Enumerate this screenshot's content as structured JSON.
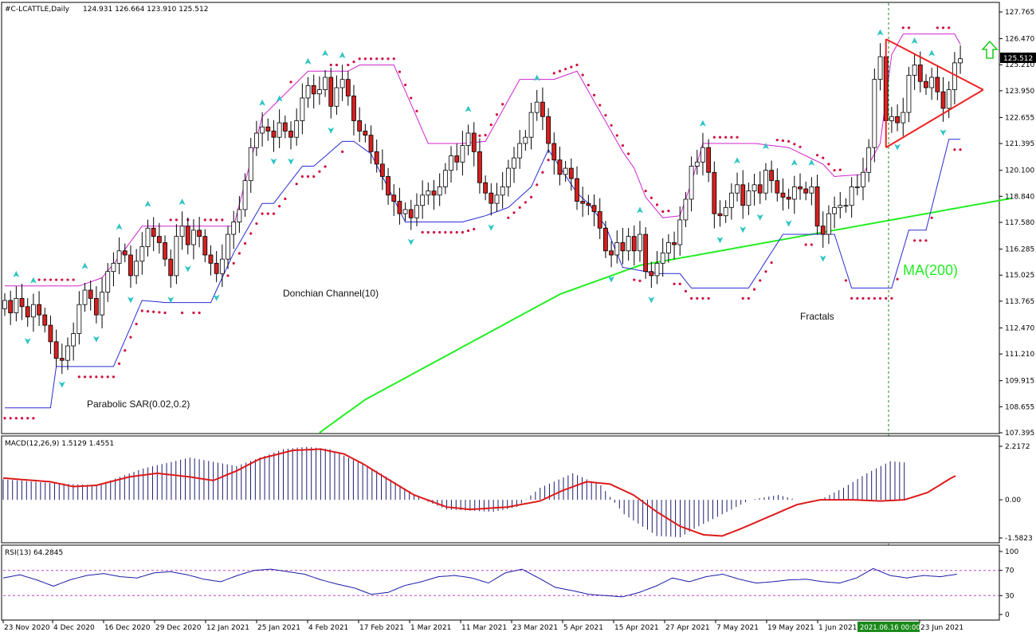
{
  "header": {
    "symbol_info": "#C-LCATTLE,Daily",
    "ohlc": "124.931 126.664 123.910 125.512"
  },
  "annotations": {
    "donchian": "Donchian Channel(10)",
    "psar": "Parabolic SAR(0.02,0.2)",
    "fractals": "Fractals",
    "ma": "MA(200)"
  },
  "colors": {
    "bull": "#ffffff",
    "bear": "#d42020",
    "donchian_upper": "#d024d0",
    "donchian_lower": "#2a2ad8",
    "psar": "#d01040",
    "ma": "#22ee22",
    "triangle": "#ee2222",
    "macd_hist": "#1c1c6e",
    "macd_signal": "#dd1a1a",
    "rsi": "#1a1aa8",
    "rsi_level": "#c040c0",
    "fractal": "#2ec4c4",
    "arrow_up": "#22cc22",
    "price_marker_bg": "#000000",
    "time_marker_bg": "#1a8a1a"
  },
  "price_marker": "125.512",
  "time_marker": "2021.06.16 00:00",
  "chart_data": [
    {
      "type": "candlestick",
      "title": "#C-LCATTLE,Daily",
      "ylim": [
        107.395,
        127.765
      ],
      "y_ticks": [
        "127.765",
        "126.470",
        "125.210",
        "123.950",
        "122.655",
        "121.395",
        "120.100",
        "118.840",
        "117.580",
        "116.285",
        "115.025",
        "113.765",
        "112.470",
        "111.210",
        "109.915",
        "108.655",
        "107.395"
      ],
      "x_ticks": [
        "23 Nov 2020",
        "4 Dec 2020",
        "16 Dec 2020",
        "29 Dec 2020",
        "12 Jan 2021",
        "25 Jan 2021",
        "4 Feb 2021",
        "17 Feb 2021",
        "1 Mar 2021",
        "11 Mar 2021",
        "23 Mar 2021",
        "5 Apr 2021",
        "15 Apr 2021",
        "27 Apr 2021",
        "7 May 2021",
        "19 May 2021",
        "1 Jun 2021",
        "23 Jun 2021"
      ],
      "series_close": [
        113.8,
        113.2,
        113.9,
        113.5,
        113.0,
        113.6,
        113.1,
        112.6,
        111.8,
        111.0,
        110.9,
        111.6,
        112.2,
        113.6,
        114.3,
        113.9,
        113.1,
        114.2,
        115.2,
        115.6,
        116.2,
        116.0,
        115.0,
        115.7,
        116.4,
        117.3,
        116.9,
        116.6,
        115.8,
        115.0,
        116.9,
        117.4,
        116.5,
        117.2,
        116.9,
        116.0,
        115.6,
        115.1,
        115.8,
        117.0,
        117.6,
        118.2,
        119.6,
        121.2,
        121.9,
        122.2,
        122.0,
        121.7,
        122.4,
        122.0,
        121.7,
        122.5,
        123.6,
        124.2,
        123.8,
        124.0,
        124.6,
        123.2,
        124.1,
        124.5,
        123.7,
        122.5,
        122.0,
        121.8,
        121.0,
        120.4,
        119.8,
        118.9,
        118.6,
        118.0,
        118.2,
        117.8,
        118.4,
        118.9,
        119.1,
        118.9,
        119.3,
        120.1,
        120.8,
        120.5,
        121.3,
        121.9,
        121.0,
        119.5,
        119.0,
        118.5,
        118.9,
        119.3,
        120.2,
        120.7,
        121.4,
        121.7,
        122.9,
        123.4,
        122.7,
        121.4,
        120.6,
        119.9,
        120.2,
        119.7,
        118.6,
        118.5,
        118.4,
        118.1,
        117.3,
        116.2,
        116.0,
        116.6,
        116.2,
        116.9,
        116.2,
        117.0,
        115.2,
        115.0,
        115.6,
        116.1,
        116.6,
        116.5,
        117.7,
        118.7,
        120.3,
        120.5,
        121.2,
        120.0,
        118.0,
        117.9,
        118.3,
        119.0,
        119.4,
        118.4,
        119.1,
        119.4,
        119.0,
        120.1,
        119.6,
        119.0,
        118.8,
        118.7,
        119.3,
        119.2,
        119.0,
        119.3,
        117.4,
        117.0,
        118.0,
        118.3,
        118.4,
        118.4,
        119.3,
        119.3,
        120.0,
        121.2,
        124.5,
        125.6,
        122.5,
        122.7,
        122.4,
        122.9,
        124.7,
        125.2,
        124.4,
        124.1,
        124.6,
        123.9,
        123.1,
        124.0,
        125.3,
        125.5
      ],
      "series_ma200": [
        null,
        null,
        null,
        null,
        null,
        null,
        null,
        null,
        null,
        null,
        null,
        null,
        null,
        null,
        null,
        null,
        null,
        null,
        null,
        null,
        null,
        null,
        null,
        null,
        null,
        null,
        null,
        null,
        null,
        null,
        null,
        null,
        null,
        null,
        null,
        null,
        null,
        null,
        null,
        null,
        null,
        null,
        null,
        null,
        null,
        null,
        null,
        null,
        null,
        null,
        null,
        null,
        null,
        null,
        null,
        107.4,
        107.6,
        107.8,
        108.0,
        108.2,
        108.4,
        108.6,
        108.8,
        109.0,
        109.15,
        109.3,
        109.45,
        109.6,
        109.75,
        109.9,
        110.05,
        110.2,
        110.35,
        110.5,
        110.65,
        110.8,
        110.95,
        111.1,
        111.25,
        111.4,
        111.55,
        111.7,
        111.85,
        112.0,
        112.15,
        112.3,
        112.45,
        112.6,
        112.75,
        112.9,
        113.05,
        113.2,
        113.35,
        113.5,
        113.65,
        113.8,
        113.95,
        114.1,
        114.2,
        114.3,
        114.4,
        114.5,
        114.6,
        114.7,
        114.8,
        114.9,
        115.0,
        115.1,
        115.2,
        115.3,
        115.4,
        115.5,
        115.55,
        115.6,
        115.65,
        115.7,
        115.75,
        115.8,
        115.85,
        115.9,
        115.95,
        116.0,
        116.05,
        116.1,
        116.15,
        116.2,
        116.25,
        116.3,
        116.35,
        116.4,
        116.45,
        116.5,
        116.55,
        116.6,
        116.65,
        116.7,
        116.75,
        116.8,
        116.85,
        116.9,
        116.95,
        117.0,
        117.05,
        117.1,
        117.15,
        117.2,
        117.25,
        117.3,
        117.35,
        117.4,
        117.45,
        117.5,
        117.55,
        117.6,
        117.65,
        117.7,
        117.75,
        117.8,
        117.85,
        117.9,
        117.95,
        118.0,
        118.05,
        118.1,
        118.15,
        118.2,
        118.25,
        118.3,
        118.35,
        118.4,
        118.45,
        118.5,
        118.55,
        118.6,
        118.65,
        118.7,
        118.75
      ],
      "donchian_upper_key": [
        [
          0,
          114.5
        ],
        [
          13,
          114.5
        ],
        [
          17,
          114.9
        ],
        [
          20,
          115.9
        ],
        [
          24,
          117.4
        ],
        [
          40,
          117.4
        ],
        [
          45,
          122.7
        ],
        [
          53,
          124.9
        ],
        [
          60,
          124.9
        ],
        [
          62,
          125.2
        ],
        [
          68,
          125.2
        ],
        [
          74,
          121.4
        ],
        [
          80,
          121.4
        ],
        [
          84,
          121.5
        ],
        [
          90,
          124.5
        ],
        [
          96,
          124.5
        ],
        [
          100,
          124.9
        ],
        [
          108,
          121.0
        ],
        [
          110,
          120.2
        ],
        [
          112,
          118.8
        ],
        [
          115,
          117.8
        ],
        [
          118,
          117.9
        ],
        [
          120,
          119.5
        ],
        [
          122,
          121.4
        ],
        [
          131,
          121.4
        ],
        [
          137,
          121.2
        ],
        [
          143,
          120.4
        ],
        [
          145,
          119.8
        ],
        [
          150,
          119.9
        ],
        [
          153,
          121.4
        ],
        [
          155,
          125.7
        ],
        [
          157,
          126.7
        ],
        [
          164,
          126.7
        ],
        [
          166,
          126.7
        ],
        [
          167,
          126.2
        ]
      ],
      "donchian_lower_key": [
        [
          0,
          108.6
        ],
        [
          8,
          108.6
        ],
        [
          9,
          110.6
        ],
        [
          19,
          110.6
        ],
        [
          24,
          113.8
        ],
        [
          28,
          113.7
        ],
        [
          36,
          113.7
        ],
        [
          40,
          116.1
        ],
        [
          45,
          118.5
        ],
        [
          47,
          118.5
        ],
        [
          52,
          120.3
        ],
        [
          54,
          120.3
        ],
        [
          59,
          121.5
        ],
        [
          61,
          121.5
        ],
        [
          64,
          120.9
        ],
        [
          70,
          117.6
        ],
        [
          80,
          117.6
        ],
        [
          84,
          117.9
        ],
        [
          88,
          118.3
        ],
        [
          92,
          119.3
        ],
        [
          95,
          121.1
        ],
        [
          100,
          119.0
        ],
        [
          102,
          118.5
        ],
        [
          105,
          117.4
        ],
        [
          108,
          115.4
        ],
        [
          114,
          115.1
        ],
        [
          118,
          115.1
        ],
        [
          120,
          114.4
        ],
        [
          130,
          114.4
        ],
        [
          133,
          115.7
        ],
        [
          136,
          117.0
        ],
        [
          145,
          117.0
        ],
        [
          148,
          114.4
        ],
        [
          155,
          114.4
        ],
        [
          158,
          117.2
        ],
        [
          161,
          117.2
        ],
        [
          165,
          121.6
        ],
        [
          167,
          121.6
        ]
      ],
      "triangle_upper": [
        [
          154,
          126.45
        ],
        [
          167,
          124.75
        ]
      ],
      "triangle_lower": [
        [
          154,
          121.2
        ],
        [
          167,
          123.2
        ]
      ],
      "triangle_apex": [
        171,
        124.0
      ]
    },
    {
      "type": "bar",
      "title": "MACD(12,26,9) 1.5129 1.4551",
      "ylim": [
        -1.5823,
        2.2172
      ],
      "y_ticks": [
        "2.2172",
        "0.00",
        "-1.5823"
      ],
      "macd_key": [
        [
          0,
          0.85
        ],
        [
          10,
          0.7
        ],
        [
          20,
          0.6
        ],
        [
          30,
          1.3
        ],
        [
          40,
          1.75
        ],
        [
          50,
          1.4
        ],
        [
          60,
          2.1
        ],
        [
          65,
          2.2
        ],
        [
          70,
          2.1
        ],
        [
          80,
          1.2
        ],
        [
          90,
          0.0
        ],
        [
          95,
          -0.4
        ],
        [
          105,
          -0.5
        ],
        [
          110,
          -0.3
        ],
        [
          115,
          0.5
        ],
        [
          122,
          1.1
        ],
        [
          128,
          0.6
        ],
        [
          133,
          -0.6
        ],
        [
          140,
          -1.5
        ],
        [
          145,
          -1.55
        ],
        [
          148,
          -1.2
        ],
        [
          155,
          -0.5
        ],
        [
          160,
          0.0
        ],
        [
          166,
          0.2
        ],
        [
          170,
          0.0
        ],
        [
          175,
          0.0
        ],
        [
          180,
          0.5
        ],
        [
          185,
          1.1
        ],
        [
          190,
          1.6
        ],
        [
          193,
          1.55
        ]
      ],
      "signal_key": [
        [
          0,
          0.9
        ],
        [
          10,
          0.75
        ],
        [
          15,
          0.55
        ],
        [
          20,
          0.6
        ],
        [
          27,
          0.95
        ],
        [
          33,
          1.1
        ],
        [
          40,
          0.95
        ],
        [
          45,
          0.8
        ],
        [
          50,
          1.2
        ],
        [
          55,
          1.7
        ],
        [
          62,
          2.05
        ],
        [
          68,
          2.1
        ],
        [
          73,
          1.9
        ],
        [
          77,
          1.5
        ],
        [
          82,
          0.9
        ],
        [
          88,
          0.2
        ],
        [
          95,
          -0.3
        ],
        [
          100,
          -0.4
        ],
        [
          108,
          -0.3
        ],
        [
          115,
          -0.05
        ],
        [
          120,
          0.4
        ],
        [
          125,
          0.75
        ],
        [
          130,
          0.65
        ],
        [
          135,
          0.2
        ],
        [
          140,
          -0.5
        ],
        [
          145,
          -1.1
        ],
        [
          150,
          -1.45
        ],
        [
          154,
          -1.5
        ],
        [
          158,
          -1.2
        ],
        [
          164,
          -0.7
        ],
        [
          170,
          -0.2
        ],
        [
          175,
          0.0
        ],
        [
          182,
          0.0
        ],
        [
          188,
          -0.05
        ],
        [
          193,
          0.0
        ],
        [
          198,
          0.3
        ],
        [
          203,
          0.9
        ],
        [
          208,
          1.35
        ],
        [
          213,
          1.48
        ]
      ]
    },
    {
      "type": "line",
      "title": "RSI(13) 64.2845",
      "ylim": [
        0,
        100
      ],
      "y_ticks": [
        "100",
        "70",
        "30",
        "0"
      ],
      "levels": [
        70,
        30
      ],
      "rsi_key": [
        [
          0,
          58
        ],
        [
          5,
          63
        ],
        [
          10,
          55
        ],
        [
          15,
          45
        ],
        [
          20,
          55
        ],
        [
          25,
          62
        ],
        [
          30,
          65
        ],
        [
          35,
          60
        ],
        [
          40,
          58
        ],
        [
          45,
          66
        ],
        [
          50,
          68
        ],
        [
          55,
          63
        ],
        [
          60,
          56
        ],
        [
          65,
          52
        ],
        [
          70,
          62
        ],
        [
          75,
          70
        ],
        [
          80,
          72
        ],
        [
          85,
          68
        ],
        [
          90,
          64
        ],
        [
          95,
          55
        ],
        [
          100,
          48
        ],
        [
          105,
          42
        ],
        [
          110,
          32
        ],
        [
          115,
          35
        ],
        [
          120,
          46
        ],
        [
          125,
          52
        ],
        [
          130,
          60
        ],
        [
          135,
          62
        ],
        [
          140,
          58
        ],
        [
          145,
          50
        ],
        [
          150,
          66
        ],
        [
          155,
          72
        ],
        [
          160,
          58
        ],
        [
          165,
          43
        ],
        [
          170,
          38
        ],
        [
          175,
          32
        ],
        [
          180,
          30
        ],
        [
          185,
          28
        ],
        [
          190,
          35
        ],
        [
          195,
          45
        ],
        [
          200,
          58
        ],
        [
          205,
          52
        ],
        [
          210,
          60
        ],
        [
          215,
          64
        ],
        [
          220,
          56
        ],
        [
          225,
          50
        ],
        [
          230,
          52
        ],
        [
          235,
          55
        ],
        [
          240,
          56
        ],
        [
          245,
          52
        ],
        [
          250,
          50
        ],
        [
          255,
          58
        ],
        [
          260,
          73
        ],
        [
          265,
          62
        ],
        [
          270,
          58
        ],
        [
          275,
          62
        ],
        [
          280,
          60
        ],
        [
          285,
          64
        ]
      ]
    }
  ]
}
